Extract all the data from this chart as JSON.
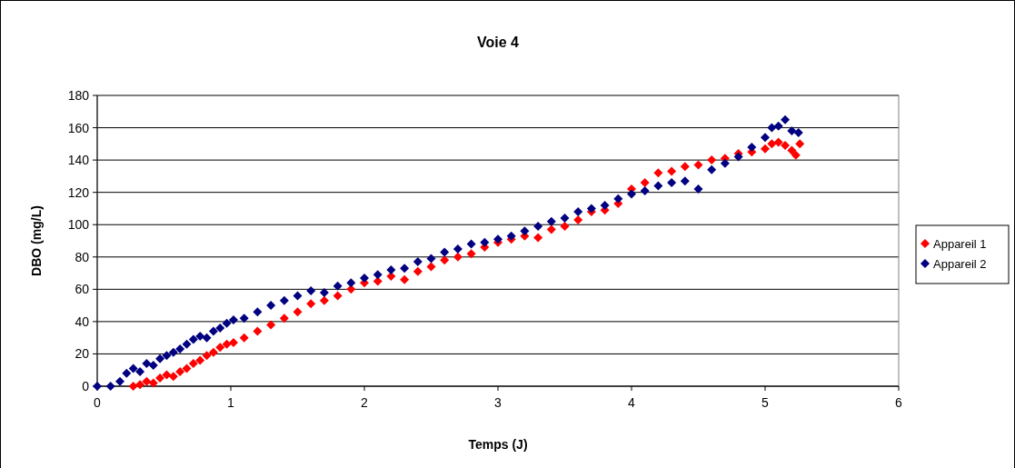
{
  "chart_data": {
    "type": "scatter",
    "title": "Voie 4",
    "xlabel": "Temps (J)",
    "ylabel": "DBO (mg/L)",
    "xlim": [
      0,
      6
    ],
    "xticks": [
      0,
      1,
      2,
      3,
      4,
      5,
      6
    ],
    "ylim": [
      0,
      180
    ],
    "yticks": [
      0,
      20,
      40,
      60,
      80,
      100,
      120,
      140,
      160,
      180
    ],
    "grid": "y",
    "legend": "right",
    "marker": "diamond",
    "series": [
      {
        "name": "Appareil 1",
        "color": "#ff0000",
        "x": [
          0.27,
          0.32,
          0.37,
          0.42,
          0.47,
          0.52,
          0.57,
          0.62,
          0.67,
          0.72,
          0.77,
          0.82,
          0.87,
          0.92,
          0.97,
          1.02,
          1.1,
          1.2,
          1.3,
          1.4,
          1.5,
          1.6,
          1.7,
          1.8,
          1.9,
          2.0,
          2.1,
          2.2,
          2.3,
          2.4,
          2.5,
          2.6,
          2.7,
          2.8,
          2.9,
          3.0,
          3.1,
          3.2,
          3.3,
          3.4,
          3.5,
          3.6,
          3.7,
          3.8,
          3.9,
          4.0,
          4.1,
          4.2,
          4.3,
          4.4,
          4.5,
          4.6,
          4.7,
          4.8,
          4.9,
          5.0,
          5.05,
          5.1,
          5.15,
          5.2,
          5.23,
          5.26
        ],
        "values": [
          0,
          1,
          3,
          2,
          5,
          7,
          6,
          9,
          11,
          14,
          16,
          19,
          21,
          24,
          26,
          27,
          30,
          34,
          38,
          42,
          46,
          51,
          53,
          56,
          60,
          64,
          65,
          68,
          66,
          71,
          74,
          78,
          80,
          82,
          86,
          89,
          91,
          93,
          92,
          97,
          99,
          103,
          108,
          109,
          113,
          122,
          126,
          132,
          133,
          136,
          137,
          140,
          141,
          144,
          145,
          147,
          150,
          151,
          149,
          146,
          143,
          150
        ]
      },
      {
        "name": "Appareil 2",
        "color": "#000080",
        "x": [
          0,
          0.1,
          0.17,
          0.22,
          0.27,
          0.32,
          0.37,
          0.42,
          0.47,
          0.52,
          0.57,
          0.62,
          0.67,
          0.72,
          0.77,
          0.82,
          0.87,
          0.92,
          0.97,
          1.02,
          1.1,
          1.2,
          1.3,
          1.4,
          1.5,
          1.6,
          1.7,
          1.8,
          1.9,
          2.0,
          2.1,
          2.2,
          2.3,
          2.4,
          2.5,
          2.6,
          2.7,
          2.8,
          2.9,
          3.0,
          3.1,
          3.2,
          3.3,
          3.4,
          3.5,
          3.6,
          3.7,
          3.8,
          3.9,
          4.0,
          4.1,
          4.2,
          4.3,
          4.4,
          4.5,
          4.6,
          4.7,
          4.8,
          4.9,
          5.0,
          5.05,
          5.1,
          5.15,
          5.2,
          5.25
        ],
        "values": [
          0,
          0,
          3,
          8,
          11,
          9,
          14,
          13,
          17,
          19,
          21,
          23,
          26,
          29,
          31,
          30,
          34,
          36,
          39,
          41,
          42,
          46,
          50,
          53,
          56,
          59,
          58,
          62,
          64,
          67,
          69,
          72,
          73,
          77,
          79,
          83,
          85,
          88,
          89,
          91,
          93,
          96,
          99,
          102,
          104,
          108,
          110,
          112,
          116,
          119,
          121,
          124,
          126,
          127,
          122,
          134,
          138,
          142,
          148,
          154,
          160,
          161,
          165,
          158,
          157
        ]
      }
    ]
  }
}
